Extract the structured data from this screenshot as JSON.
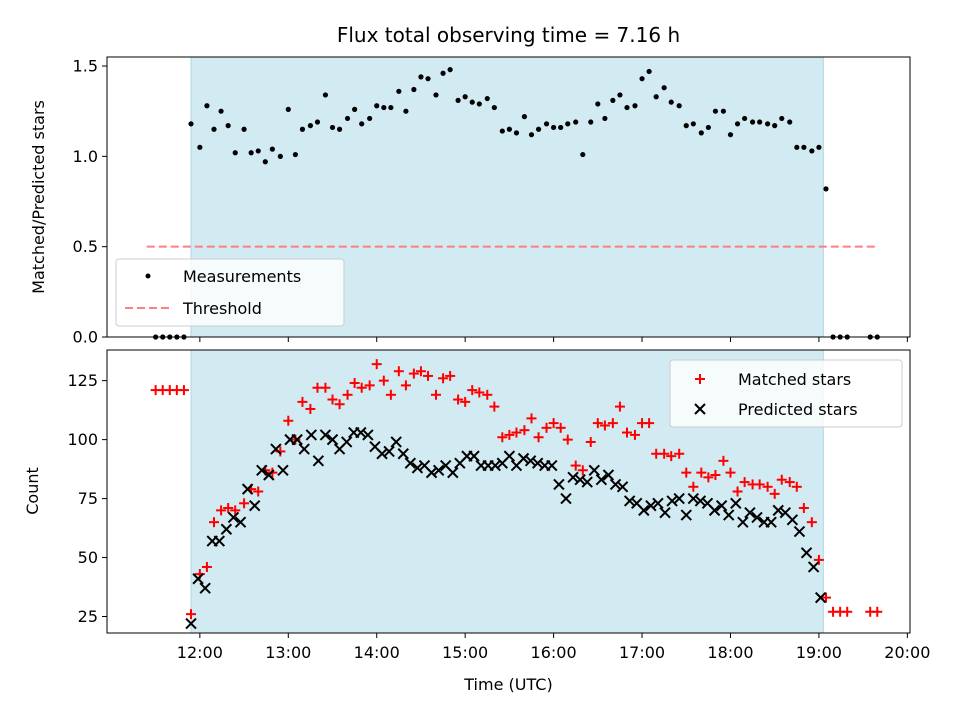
{
  "chart_data": [
    {
      "type": "scatter",
      "title": "Flux total observing time = 7.16 h",
      "xlabel": "",
      "ylabel": "Matched/Predicted stars",
      "ylim": [
        0,
        1.55
      ],
      "yticks": [
        "0.0",
        "0.5",
        "1.0",
        "1.5"
      ],
      "xlim": [
        10.95,
        20.03
      ],
      "shaded_interval": [
        11.9,
        19.05
      ],
      "shade_color": "#add8e6",
      "legend_position": "lower left",
      "threshold": {
        "name": "Threshold",
        "y": 0.5,
        "x_range": [
          11.4,
          19.65
        ],
        "color": "#ff7f7f"
      },
      "series": [
        {
          "name": "Measurements",
          "color": "#000000",
          "marker": "dot",
          "x": [
            11.5,
            11.58,
            11.66,
            11.74,
            11.82,
            11.9,
            12.0,
            12.08,
            12.16,
            12.24,
            12.32,
            12.4,
            12.5,
            12.58,
            12.66,
            12.74,
            12.82,
            12.91,
            13.0,
            13.08,
            13.16,
            13.25,
            13.33,
            13.42,
            13.5,
            13.58,
            13.67,
            13.75,
            13.83,
            13.92,
            14.0,
            14.08,
            14.16,
            14.25,
            14.33,
            14.42,
            14.5,
            14.58,
            14.67,
            14.75,
            14.83,
            14.92,
            15.0,
            15.08,
            15.16,
            15.25,
            15.33,
            15.42,
            15.5,
            15.58,
            15.67,
            15.75,
            15.83,
            15.92,
            16.0,
            16.08,
            16.16,
            16.25,
            16.33,
            16.42,
            16.5,
            16.58,
            16.67,
            16.75,
            16.83,
            16.92,
            17.0,
            17.08,
            17.16,
            17.25,
            17.33,
            17.42,
            17.5,
            17.58,
            17.67,
            17.75,
            17.83,
            17.92,
            18.0,
            18.08,
            18.16,
            18.25,
            18.33,
            18.42,
            18.5,
            18.58,
            18.67,
            18.75,
            18.83,
            18.92,
            19.0,
            19.08,
            19.16,
            19.24,
            19.32,
            19.58,
            19.66
          ],
          "y": [
            0,
            0,
            0,
            0,
            0,
            1.18,
            1.05,
            1.28,
            1.15,
            1.25,
            1.17,
            1.02,
            1.15,
            1.02,
            1.03,
            0.97,
            1.04,
            1.0,
            1.26,
            1.01,
            1.15,
            1.17,
            1.19,
            1.34,
            1.16,
            1.15,
            1.21,
            1.26,
            1.18,
            1.21,
            1.28,
            1.27,
            1.27,
            1.36,
            1.25,
            1.37,
            1.44,
            1.43,
            1.34,
            1.46,
            1.48,
            1.31,
            1.33,
            1.3,
            1.29,
            1.32,
            1.27,
            1.14,
            1.15,
            1.13,
            1.22,
            1.12,
            1.15,
            1.18,
            1.16,
            1.16,
            1.18,
            1.19,
            1.01,
            1.19,
            1.29,
            1.21,
            1.31,
            1.34,
            1.27,
            1.28,
            1.43,
            1.47,
            1.33,
            1.38,
            1.3,
            1.28,
            1.17,
            1.18,
            1.13,
            1.16,
            1.25,
            1.25,
            1.12,
            1.18,
            1.21,
            1.19,
            1.19,
            1.18,
            1.17,
            1.21,
            1.19,
            1.05,
            1.05,
            1.03,
            1.05,
            0.82,
            0,
            0,
            0,
            0,
            0
          ]
        }
      ]
    },
    {
      "type": "scatter",
      "title": "",
      "xlabel": "Time (UTC)",
      "ylabel": "Count",
      "ylim": [
        18,
        138
      ],
      "yticks": [
        "25",
        "50",
        "75",
        "100",
        "125"
      ],
      "ytick_values": [
        25,
        50,
        75,
        100,
        125
      ],
      "xlim": [
        10.95,
        20.03
      ],
      "xticks": [
        "12:00",
        "13:00",
        "14:00",
        "15:00",
        "16:00",
        "17:00",
        "18:00",
        "19:00",
        "20:00"
      ],
      "xtick_values": [
        12,
        13,
        14,
        15,
        16,
        17,
        18,
        19,
        20
      ],
      "shaded_interval": [
        11.9,
        19.05
      ],
      "legend_position": "upper right",
      "series": [
        {
          "name": "Matched stars",
          "color": "#ff0000",
          "marker": "plus",
          "x": [
            11.5,
            11.58,
            11.66,
            11.74,
            11.82,
            11.9,
            12.0,
            12.08,
            12.16,
            12.24,
            12.32,
            12.4,
            12.5,
            12.58,
            12.66,
            12.74,
            12.82,
            12.91,
            13.0,
            13.08,
            13.16,
            13.25,
            13.33,
            13.42,
            13.5,
            13.58,
            13.67,
            13.75,
            13.83,
            13.92,
            14.0,
            14.08,
            14.16,
            14.25,
            14.33,
            14.42,
            14.5,
            14.58,
            14.67,
            14.75,
            14.83,
            14.92,
            15.0,
            15.08,
            15.16,
            15.25,
            15.33,
            15.42,
            15.5,
            15.58,
            15.67,
            15.75,
            15.83,
            15.92,
            16.0,
            16.08,
            16.16,
            16.25,
            16.33,
            16.42,
            16.5,
            16.58,
            16.67,
            16.75,
            16.83,
            16.92,
            17.0,
            17.08,
            17.16,
            17.25,
            17.33,
            17.42,
            17.5,
            17.58,
            17.67,
            17.75,
            17.83,
            17.92,
            18.0,
            18.08,
            18.16,
            18.25,
            18.33,
            18.42,
            18.5,
            18.58,
            18.67,
            18.75,
            18.83,
            18.92,
            19.0,
            19.08,
            19.16,
            19.24,
            19.32,
            19.58,
            19.66
          ],
          "y": [
            121,
            121,
            121,
            121,
            121,
            26,
            43,
            46,
            65,
            70,
            71,
            70,
            73,
            79,
            78,
            87,
            86,
            95,
            108,
            100,
            116,
            113,
            122,
            122,
            117,
            115,
            119,
            124,
            122,
            123,
            132,
            125,
            119,
            129,
            123,
            128,
            129,
            127,
            119,
            126,
            127,
            117,
            116,
            121,
            120,
            119,
            114,
            101,
            102,
            103,
            104,
            109,
            101,
            105,
            107,
            105,
            100,
            89,
            87,
            99,
            107,
            106,
            107,
            114,
            103,
            102,
            107,
            107,
            94,
            94,
            93,
            94,
            86,
            80,
            86,
            84,
            85,
            91,
            86,
            78,
            82,
            81,
            81,
            80,
            77,
            83,
            82,
            80,
            71,
            65,
            49,
            33,
            27,
            27,
            27,
            27,
            27
          ]
        },
        {
          "name": "Predicted stars",
          "color": "#000000",
          "marker": "x",
          "x": [
            11.9,
            11.98,
            12.06,
            12.14,
            12.22,
            12.3,
            12.38,
            12.46,
            12.54,
            12.62,
            12.7,
            12.78,
            12.86,
            12.94,
            13.02,
            13.1,
            13.18,
            13.26,
            13.34,
            13.42,
            13.5,
            13.58,
            13.66,
            13.74,
            13.82,
            13.9,
            13.98,
            14.06,
            14.14,
            14.22,
            14.3,
            14.38,
            14.46,
            14.54,
            14.62,
            14.7,
            14.78,
            14.86,
            14.94,
            15.02,
            15.1,
            15.18,
            15.26,
            15.34,
            15.42,
            15.5,
            15.58,
            15.66,
            15.74,
            15.82,
            15.9,
            15.98,
            16.06,
            16.14,
            16.22,
            16.3,
            16.38,
            16.46,
            16.54,
            16.62,
            16.7,
            16.78,
            16.86,
            16.94,
            17.02,
            17.1,
            17.18,
            17.26,
            17.34,
            17.42,
            17.5,
            17.58,
            17.66,
            17.74,
            17.82,
            17.9,
            17.98,
            18.06,
            18.14,
            18.22,
            18.3,
            18.38,
            18.46,
            18.54,
            18.62,
            18.7,
            18.78,
            18.86,
            18.94,
            19.02
          ],
          "y": [
            22,
            41,
            37,
            57,
            57,
            62,
            67,
            65,
            79,
            72,
            87,
            85,
            96,
            87,
            100,
            100,
            96,
            102,
            91,
            102,
            100,
            96,
            99,
            103,
            103,
            102,
            97,
            94,
            95,
            99,
            94,
            90,
            88,
            89,
            86,
            87,
            89,
            86,
            90,
            93,
            93,
            89,
            89,
            89,
            90,
            93,
            89,
            92,
            91,
            90,
            89,
            89,
            81,
            75,
            84,
            83,
            82,
            87,
            83,
            85,
            81,
            80,
            74,
            73,
            70,
            72,
            73,
            69,
            74,
            75,
            68,
            75,
            74,
            73,
            70,
            72,
            68,
            73,
            65,
            69,
            67,
            65,
            65,
            70,
            69,
            66,
            61,
            52,
            46,
            33
          ]
        }
      ]
    }
  ]
}
